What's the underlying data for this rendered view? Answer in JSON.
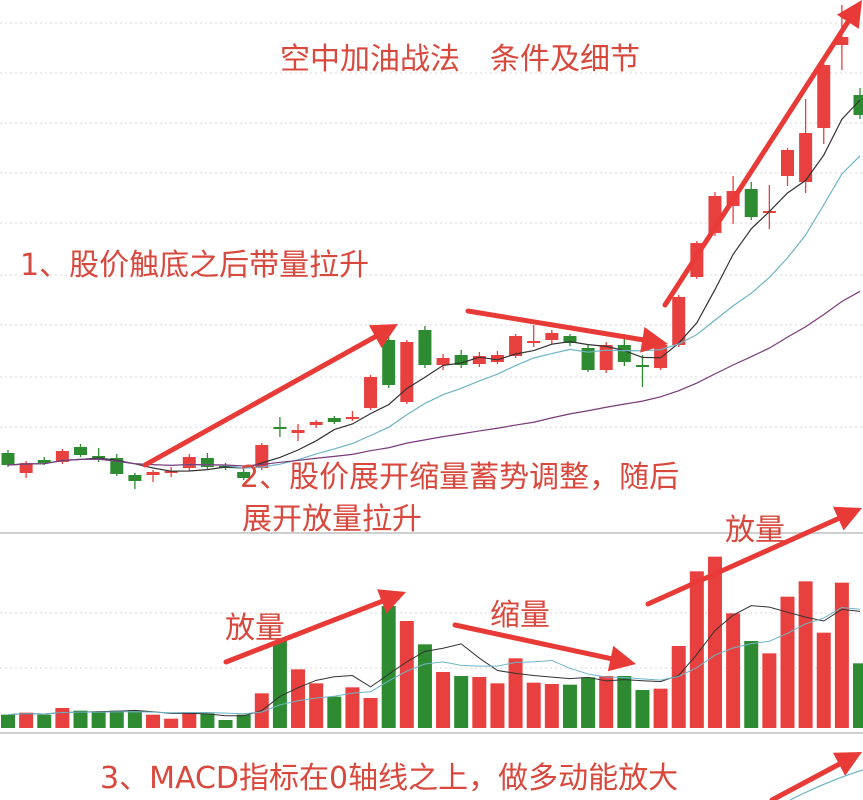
{
  "colors": {
    "up": "#e8403f",
    "down": "#2e8b32",
    "text": "#d9483d",
    "arrow": "#e83a36",
    "ma_short": "#333333",
    "ma_mid": "#6fb4c8",
    "ma_long": "#7a3a7a",
    "grid": "#d8d8d8"
  },
  "annotations": {
    "title": "空中加油战法　条件及细节",
    "point1": "1、股价触底之后带量拉升",
    "point2_line1": "2、股价展开缩量蓄势调整，随后",
    "point2_line2": "展开放量拉升",
    "volume_up_1": "放量",
    "volume_down": "缩量",
    "volume_up_2": "放量",
    "point3": "3、MACD指标在0轴线之上，做多动能放大"
  },
  "chart_data": [
    {
      "type": "candlestick",
      "pane": "price",
      "grid": true,
      "ylim": [
        1,
        54
      ],
      "moving_averages": [
        5,
        10,
        30
      ],
      "ohlc": [
        [
          8.7,
          9.0,
          7.3,
          7.5
        ],
        [
          6.7,
          7.9,
          6.2,
          7.7
        ],
        [
          8.0,
          8.3,
          7.5,
          7.7
        ],
        [
          7.8,
          9.1,
          7.6,
          8.9
        ],
        [
          9.3,
          9.6,
          8.3,
          8.5
        ],
        [
          8.4,
          9.2,
          7.8,
          8.2
        ],
        [
          8.2,
          8.6,
          6.4,
          6.6
        ],
        [
          6.5,
          6.7,
          5.1,
          5.9
        ],
        [
          6.5,
          7.0,
          5.8,
          6.8
        ],
        [
          6.7,
          7.3,
          6.3,
          6.9
        ],
        [
          7.2,
          8.6,
          6.9,
          8.3
        ],
        [
          8.2,
          8.7,
          7.1,
          7.3
        ],
        [
          7.4,
          7.7,
          7.0,
          7.2
        ],
        [
          6.8,
          7.1,
          6.0,
          6.2
        ],
        [
          7.2,
          9.7,
          7.0,
          9.5
        ],
        [
          11.3,
          12.3,
          10.3,
          11.1
        ],
        [
          10.7,
          11.6,
          9.9,
          11.0
        ],
        [
          11.5,
          12.0,
          11.2,
          11.8
        ],
        [
          12.2,
          12.4,
          11.6,
          11.8
        ],
        [
          12.1,
          12.9,
          11.9,
          12.3
        ],
        [
          13.2,
          16.5,
          13.0,
          16.3
        ],
        [
          20.0,
          20.3,
          15.2,
          15.5
        ],
        [
          13.8,
          20.0,
          13.6,
          19.8
        ],
        [
          21.0,
          21.4,
          17.2,
          17.5
        ],
        [
          17.5,
          18.6,
          17.0,
          18.2
        ],
        [
          18.5,
          19.0,
          17.2,
          17.5
        ],
        [
          17.6,
          18.8,
          17.3,
          18.4
        ],
        [
          17.8,
          18.9,
          17.6,
          18.5
        ],
        [
          18.4,
          20.6,
          18.2,
          20.4
        ],
        [
          19.7,
          21.5,
          19.3,
          19.9
        ],
        [
          20.0,
          21.0,
          19.6,
          20.7
        ],
        [
          20.4,
          20.6,
          19.4,
          19.7
        ],
        [
          19.2,
          19.6,
          16.8,
          17.0
        ],
        [
          17.0,
          19.8,
          16.7,
          19.5
        ],
        [
          19.5,
          20.6,
          17.4,
          17.8
        ],
        [
          17.5,
          18.5,
          15.3,
          17.3
        ],
        [
          17.2,
          19.7,
          17.0,
          19.5
        ],
        [
          19.5,
          24.5,
          19.3,
          24.3
        ],
        [
          26.3,
          29.9,
          26.1,
          29.7
        ],
        [
          30.7,
          34.8,
          30.4,
          34.4
        ],
        [
          33.4,
          36.4,
          31.6,
          34.9
        ],
        [
          35.1,
          35.8,
          32.0,
          32.3
        ],
        [
          32.7,
          35.5,
          31.1,
          32.9
        ],
        [
          36.4,
          39.2,
          35.4,
          39.0
        ],
        [
          35.8,
          44.1,
          34.7,
          40.7
        ],
        [
          41.2,
          47.7,
          39.6,
          47.5
        ],
        [
          49.5,
          53.5,
          47.0,
          50.3
        ],
        [
          44.5,
          45.2,
          42.1,
          42.5
        ]
      ]
    },
    {
      "type": "bar",
      "pane": "volume",
      "grid": true,
      "ylim": [
        0,
        564
      ],
      "moving_averages": [
        5,
        10
      ],
      "values": [
        40,
        46,
        40,
        60,
        52,
        48,
        52,
        52,
        40,
        28,
        48,
        44,
        24,
        40,
        104,
        261,
        176,
        134,
        94,
        122,
        90,
        366,
        321,
        251,
        168,
        156,
        153,
        134,
        209,
        136,
        132,
        130,
        152,
        156,
        156,
        114,
        118,
        246,
        470,
        514,
        344,
        261,
        224,
        394,
        440,
        286,
        436,
        194
      ],
      "directions": [
        "down",
        "up",
        "down",
        "up",
        "down",
        "down",
        "down",
        "down",
        "up",
        "up",
        "up",
        "down",
        "down",
        "down",
        "up",
        "down",
        "up",
        "up",
        "down",
        "up",
        "up",
        "down",
        "up",
        "down",
        "up",
        "down",
        "up",
        "up",
        "up",
        "up",
        "up",
        "down",
        "down",
        "up",
        "down",
        "down",
        "up",
        "up",
        "up",
        "up",
        "up",
        "down",
        "up",
        "up",
        "up",
        "up",
        "up",
        "down"
      ]
    }
  ]
}
